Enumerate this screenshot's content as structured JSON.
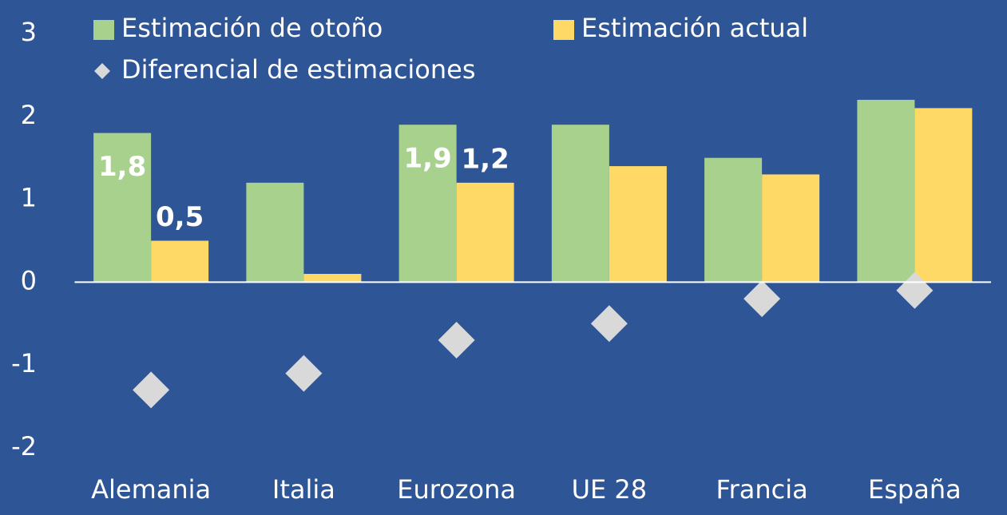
{
  "chart_data": {
    "type": "bar",
    "categories": [
      "Alemania",
      "Italia",
      "Eurozona",
      "UE 28",
      "Francia",
      "España"
    ],
    "series": [
      {
        "name": "Estimación de otoño",
        "color": "#a9d18e",
        "values": [
          1.8,
          1.2,
          1.9,
          1.9,
          1.5,
          2.2
        ],
        "value_labels": [
          "1,8",
          null,
          "1,9",
          null,
          null,
          null
        ]
      },
      {
        "name": "Estimación actual",
        "color": "#ffd966",
        "values": [
          0.5,
          0.1,
          1.2,
          1.4,
          1.3,
          2.1
        ],
        "value_labels": [
          "0,5",
          null,
          "1,2",
          null,
          null,
          null
        ]
      },
      {
        "name": "Diferencial de estimaciones",
        "color": "#d9d9d9",
        "type": "scatter",
        "marker": "diamond",
        "values": [
          -1.3,
          -1.1,
          -0.7,
          -0.5,
          -0.2,
          -0.1
        ]
      }
    ],
    "ylim": [
      -2,
      3
    ],
    "yticks": [
      -2,
      -1,
      0,
      1,
      2,
      3
    ],
    "grid": false,
    "legend": "top"
  }
}
